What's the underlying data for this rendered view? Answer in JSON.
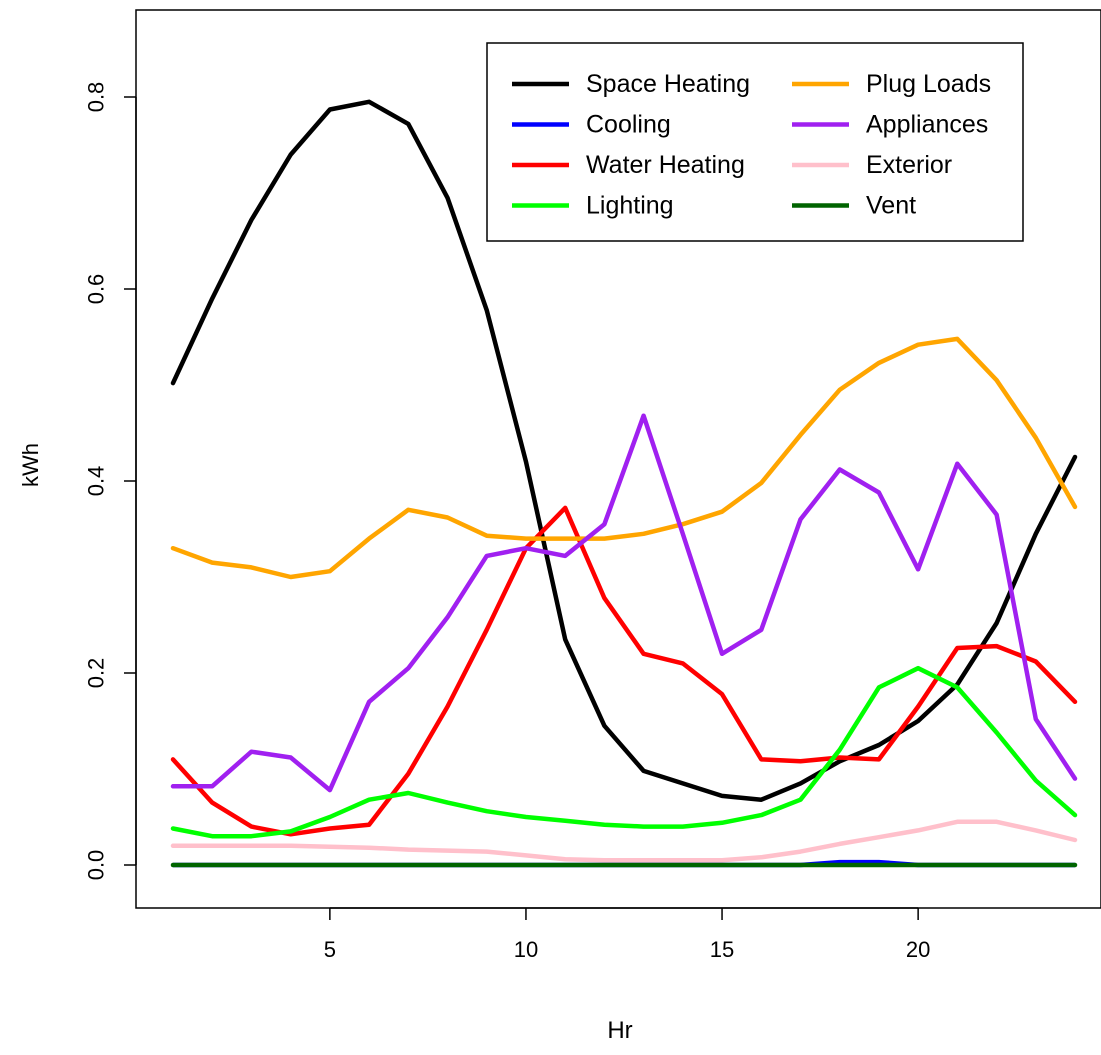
{
  "chart_data": {
    "type": "line",
    "title": "",
    "xlabel": "Hr",
    "ylabel": "kWh",
    "xlim": [
      1,
      24
    ],
    "ylim": [
      0,
      0.8
    ],
    "x_ticks": [
      5,
      10,
      15,
      20
    ],
    "y_ticks": [
      0.0,
      0.2,
      0.4,
      0.6,
      0.8
    ],
    "y_tick_labels": [
      "0.0",
      "0.2",
      "0.4",
      "0.6",
      "0.8"
    ],
    "grid": false,
    "legend_position": "top-right",
    "x": [
      1,
      2,
      3,
      4,
      5,
      6,
      7,
      8,
      9,
      10,
      11,
      12,
      13,
      14,
      15,
      16,
      17,
      18,
      19,
      20,
      21,
      22,
      23,
      24
    ],
    "series": [
      {
        "name": "Space Heating",
        "color": "#000000",
        "values": [
          0.502,
          0.59,
          0.672,
          0.74,
          0.787,
          0.795,
          0.772,
          0.695,
          0.578,
          0.42,
          0.235,
          0.145,
          0.098,
          0.085,
          0.072,
          0.068,
          0.085,
          0.108,
          0.125,
          0.15,
          0.188,
          0.252,
          0.345,
          0.425
        ]
      },
      {
        "name": "Cooling",
        "color": "#0000ff",
        "values": [
          0,
          0,
          0,
          0,
          0,
          0,
          0,
          0,
          0,
          0,
          0,
          0,
          0,
          0,
          0,
          0,
          0,
          0.003,
          0.003,
          0,
          0,
          0,
          0,
          0
        ]
      },
      {
        "name": "Water Heating",
        "color": "#ff0000",
        "values": [
          0.11,
          0.065,
          0.04,
          0.032,
          0.038,
          0.042,
          0.095,
          0.165,
          0.245,
          0.33,
          0.372,
          0.278,
          0.22,
          0.21,
          0.178,
          0.11,
          0.108,
          0.112,
          0.11,
          0.165,
          0.226,
          0.228,
          0.212,
          0.17
        ]
      },
      {
        "name": "Lighting",
        "color": "#00ff00",
        "values": [
          0.038,
          0.03,
          0.03,
          0.035,
          0.05,
          0.068,
          0.075,
          0.065,
          0.056,
          0.05,
          0.046,
          0.042,
          0.04,
          0.04,
          0.044,
          0.052,
          0.068,
          0.12,
          0.185,
          0.205,
          0.185,
          0.138,
          0.088,
          0.052
        ]
      },
      {
        "name": "Plug Loads",
        "color": "#ffa500",
        "values": [
          0.33,
          0.315,
          0.31,
          0.3,
          0.306,
          0.34,
          0.37,
          0.362,
          0.343,
          0.34,
          0.34,
          0.34,
          0.345,
          0.355,
          0.368,
          0.398,
          0.448,
          0.495,
          0.523,
          0.542,
          0.548,
          0.505,
          0.445,
          0.373
        ]
      },
      {
        "name": "Appliances",
        "color": "#a020f0",
        "values": [
          0.082,
          0.082,
          0.118,
          0.112,
          0.078,
          0.17,
          0.205,
          0.258,
          0.322,
          0.33,
          0.322,
          0.355,
          0.468,
          0.345,
          0.22,
          0.245,
          0.36,
          0.412,
          0.388,
          0.308,
          0.418,
          0.365,
          0.152,
          0.09
        ]
      },
      {
        "name": "Exterior",
        "color": "#ffc0cb",
        "values": [
          0.02,
          0.02,
          0.02,
          0.02,
          0.019,
          0.018,
          0.016,
          0.015,
          0.014,
          0.01,
          0.006,
          0.005,
          0.005,
          0.005,
          0.005,
          0.008,
          0.014,
          0.022,
          0.029,
          0.036,
          0.045,
          0.045,
          0.036,
          0.026
        ]
      },
      {
        "name": "Vent",
        "color": "#006400",
        "values": [
          0,
          0,
          0,
          0,
          0,
          0,
          0,
          0,
          0,
          0,
          0,
          0,
          0,
          0,
          0,
          0,
          0,
          0,
          0,
          0,
          0,
          0,
          0,
          0
        ]
      }
    ]
  }
}
